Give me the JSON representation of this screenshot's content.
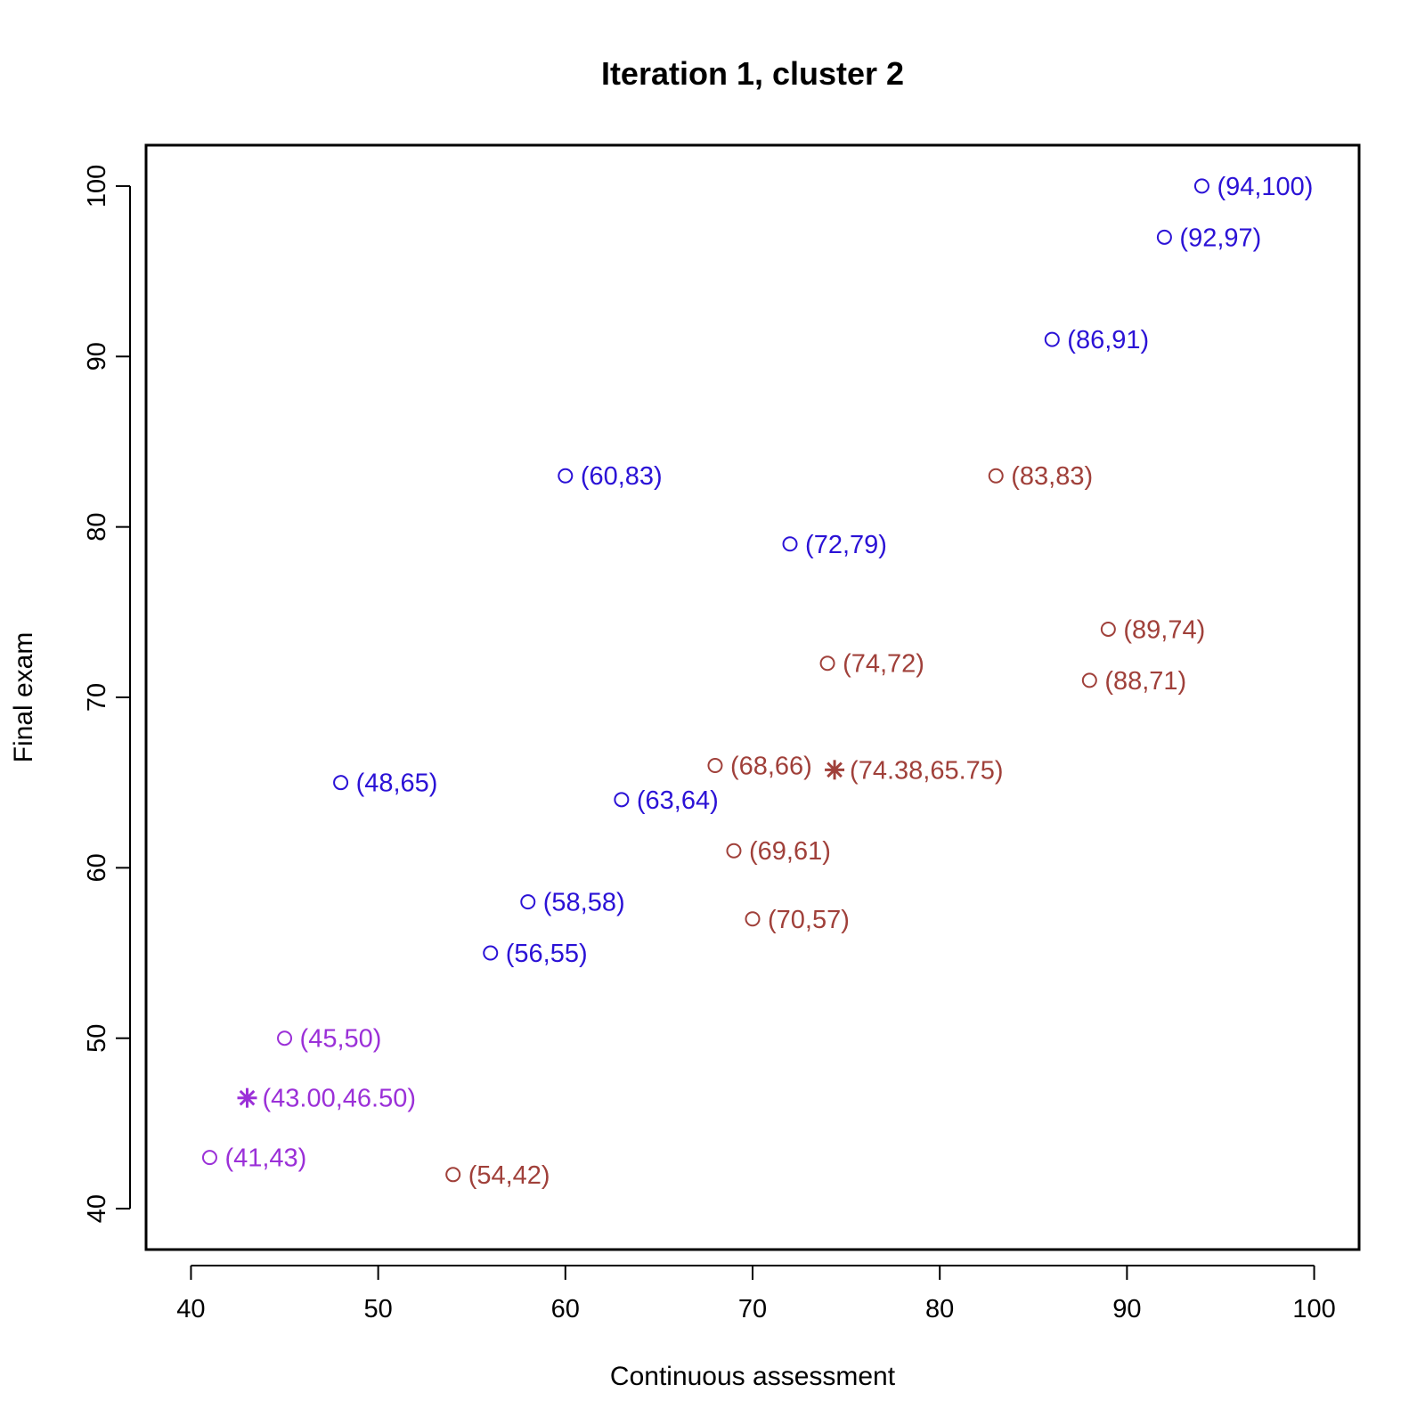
{
  "chart_data": {
    "type": "scatter",
    "title": "Iteration 1, cluster 2",
    "xlabel": "Continuous assessment",
    "ylabel": "Final exam",
    "xlim": [
      37.6,
      102.4
    ],
    "ylim": [
      37.6,
      102.4
    ],
    "xticks": [
      40,
      50,
      60,
      70,
      80,
      90,
      100
    ],
    "yticks": [
      40,
      50,
      60,
      70,
      80,
      90,
      100
    ],
    "grid": false,
    "colors": {
      "blue": "#2b12d6",
      "brown": "#a0403a",
      "purple": "#9b30d8"
    },
    "points": [
      {
        "x": 94,
        "y": 100,
        "label": "(94,100)",
        "color": "blue",
        "marker": "circle"
      },
      {
        "x": 92,
        "y": 97,
        "label": "(92,97)",
        "color": "blue",
        "marker": "circle"
      },
      {
        "x": 86,
        "y": 91,
        "label": "(86,91)",
        "color": "blue",
        "marker": "circle"
      },
      {
        "x": 60,
        "y": 83,
        "label": "(60,83)",
        "color": "blue",
        "marker": "circle"
      },
      {
        "x": 72,
        "y": 79,
        "label": "(72,79)",
        "color": "blue",
        "marker": "circle"
      },
      {
        "x": 48,
        "y": 65,
        "label": "(48,65)",
        "color": "blue",
        "marker": "circle"
      },
      {
        "x": 63,
        "y": 64,
        "label": "(63,64)",
        "color": "blue",
        "marker": "circle"
      },
      {
        "x": 58,
        "y": 58,
        "label": "(58,58)",
        "color": "blue",
        "marker": "circle"
      },
      {
        "x": 56,
        "y": 55,
        "label": "(56,55)",
        "color": "blue",
        "marker": "circle"
      },
      {
        "x": 83,
        "y": 83,
        "label": "(83,83)",
        "color": "brown",
        "marker": "circle"
      },
      {
        "x": 89,
        "y": 74,
        "label": "(89,74)",
        "color": "brown",
        "marker": "circle"
      },
      {
        "x": 74,
        "y": 72,
        "label": "(74,72)",
        "color": "brown",
        "marker": "circle"
      },
      {
        "x": 88,
        "y": 71,
        "label": "(88,71)",
        "color": "brown",
        "marker": "circle"
      },
      {
        "x": 68,
        "y": 66,
        "label": "(68,66)",
        "color": "brown",
        "marker": "circle"
      },
      {
        "x": 69,
        "y": 61,
        "label": "(69,61)",
        "color": "brown",
        "marker": "circle"
      },
      {
        "x": 70,
        "y": 57,
        "label": "(70,57)",
        "color": "brown",
        "marker": "circle"
      },
      {
        "x": 54,
        "y": 42,
        "label": "(54,42)",
        "color": "brown",
        "marker": "circle"
      },
      {
        "x": 45,
        "y": 50,
        "label": "(45,50)",
        "color": "purple",
        "marker": "circle"
      },
      {
        "x": 41,
        "y": 43,
        "label": "(41,43)",
        "color": "purple",
        "marker": "circle"
      }
    ],
    "centroids": [
      {
        "x": 74.38,
        "y": 65.75,
        "label": "(74.38,65.75)",
        "color": "brown",
        "marker": "asterisk"
      },
      {
        "x": 43.0,
        "y": 46.5,
        "label": "(43.00,46.50)",
        "color": "purple",
        "marker": "asterisk"
      }
    ]
  }
}
